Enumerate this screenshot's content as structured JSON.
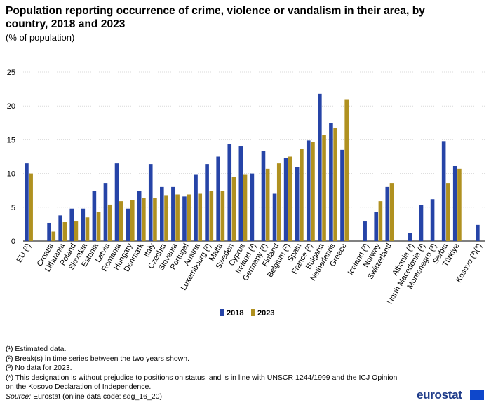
{
  "title": "Population reporting occurrence of crime, violence or vandalism in their area, by country, 2018 and 2023",
  "subtitle": "(% of population)",
  "chart_data": {
    "type": "bar",
    "title": "Population reporting occurrence of crime, violence or vandalism in their area, by country, 2018 and 2023",
    "ylabel": "% of population",
    "ylim": [
      0,
      25
    ],
    "yticks": [
      0,
      5,
      10,
      15,
      20,
      25
    ],
    "grid": true,
    "legend": "bottom-center",
    "categories": [
      "EU (¹)",
      "",
      "Croatia",
      "Lithuania",
      "Poland",
      "Slovakia",
      "Estonia",
      "Latvia",
      "Romania",
      "Hungary",
      "Denmark",
      "Italy",
      "Czechia",
      "Slovenia",
      "Portugal",
      "Austria",
      "Luxembourg (²)",
      "Malta",
      "Sweden",
      "Cyprus",
      "Ireland (³)",
      "Germany (²)",
      "Finland",
      "Belgium (²)",
      "Spain",
      "France (²)",
      "Bulgaria",
      "Netherlands",
      "Greece",
      "",
      "Iceland (³)",
      "Norway",
      "Switzerland",
      "",
      "Albania (³)",
      "North Macedonia (³)",
      "Montenegro (³)",
      "Serbia",
      "Türkiye",
      "",
      "Kosovo (³)(*)"
    ],
    "series": [
      {
        "name": "2018",
        "color": "#2644a7",
        "values": [
          11.5,
          null,
          2.7,
          3.8,
          4.8,
          4.8,
          7.4,
          8.6,
          11.5,
          4.8,
          7.4,
          11.4,
          8.0,
          8.0,
          6.6,
          9.8,
          11.4,
          12.5,
          14.4,
          14.0,
          10.0,
          13.3,
          7.0,
          12.3,
          10.9,
          14.9,
          21.8,
          17.5,
          13.5,
          null,
          2.9,
          4.3,
          8.0,
          null,
          1.2,
          5.3,
          6.2,
          14.8,
          11.1,
          null,
          2.4
        ]
      },
      {
        "name": "2023",
        "color": "#b09120",
        "values": [
          10.0,
          null,
          1.4,
          2.8,
          2.9,
          3.5,
          4.3,
          5.4,
          5.9,
          6.1,
          6.4,
          6.4,
          6.7,
          6.9,
          6.9,
          7.0,
          7.4,
          7.4,
          9.5,
          9.8,
          null,
          10.7,
          11.5,
          12.5,
          13.6,
          14.7,
          15.7,
          16.7,
          20.9,
          null,
          null,
          5.9,
          8.6,
          null,
          null,
          null,
          null,
          8.6,
          10.7,
          null,
          null
        ]
      }
    ]
  },
  "legend": {
    "items": [
      "2018",
      "2023"
    ]
  },
  "notes": [
    "(¹) Estimated data.",
    "(²) Break(s) in time series between the two years shown.",
    "(³) No data for 2023.",
    "(*) This designation is without prejudice to positions on status, and is in line with UNSCR 1244/1999 and the ICJ Opinion on the Kosovo Declaration of Independence."
  ],
  "source": {
    "label": "Source:",
    "text": " Eurostat (online data code: sdg_16_20)"
  },
  "logo": {
    "text": "eurostat"
  }
}
